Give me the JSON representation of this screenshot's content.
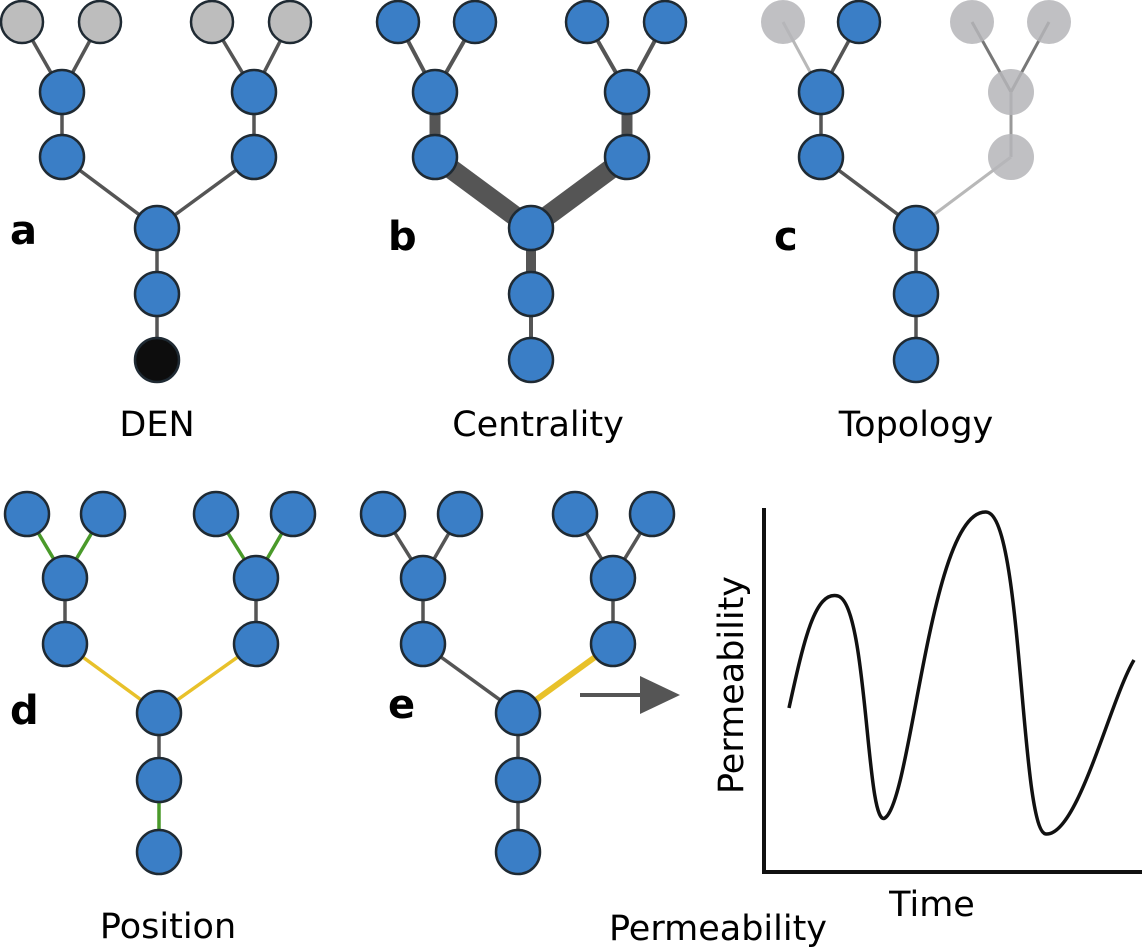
{
  "colors": {
    "node_blue": "#3a7ec6",
    "node_grey": "#bdbdbd",
    "node_black": "#0d0d0d",
    "edge_grey": "#555555",
    "edge_green": "#4a9a2a",
    "edge_yellow": "#e8c12a",
    "faded": "#b5b5b8"
  },
  "panels": [
    {
      "letter": "a",
      "caption": "DEN"
    },
    {
      "letter": "b",
      "caption": "Centrality"
    },
    {
      "letter": "c",
      "caption": "Topology"
    },
    {
      "letter": "d",
      "caption": "Position"
    },
    {
      "letter": "e",
      "caption": "Permeability"
    }
  ],
  "chart": {
    "xlabel": "Time",
    "ylabel": "Permeability"
  }
}
